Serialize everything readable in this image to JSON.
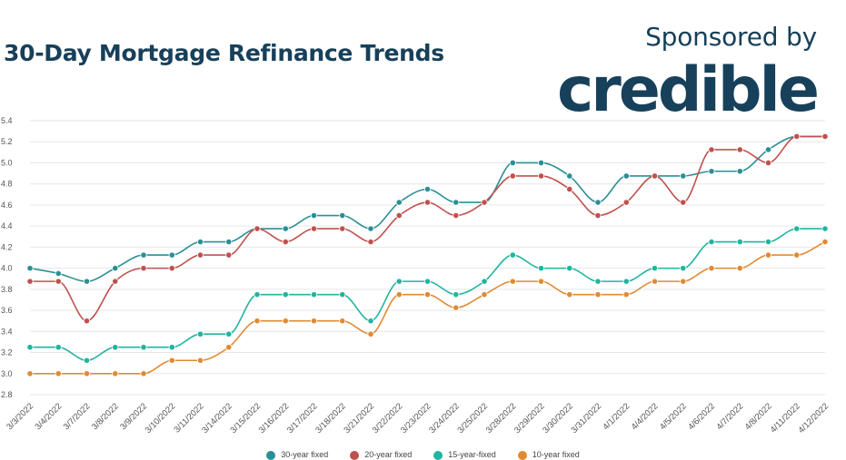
{
  "header": {
    "title": "30-Day Mortgage Refinance Trends",
    "sponsor_text": "Sponsored by",
    "sponsor_logo": "credible"
  },
  "colors": {
    "title": "#17405a",
    "grid": "#e6e6e6",
    "tick_text": "#555555"
  },
  "chart_data": {
    "type": "line",
    "categories": [
      "3/3/2022",
      "3/4/2022",
      "3/7/2022",
      "3/8/2022",
      "3/9/2022",
      "3/10/2022",
      "3/11/2022",
      "3/14/2022",
      "3/15/2022",
      "3/16/2022",
      "3/17/2022",
      "3/18/2022",
      "3/21/2022",
      "3/22/2022",
      "3/23/2022",
      "3/24/2022",
      "3/25/2022",
      "3/28/2022",
      "3/29/2022",
      "3/30/2022",
      "3/31/2022",
      "4/1/2022",
      "4/4/2022",
      "4/5/2022",
      "4/6/2022",
      "4/7/2022",
      "4/8/2022",
      "4/11/2022",
      "4/12/2022"
    ],
    "yticks": [
      "2.8",
      "3.0",
      "3.2",
      "3.4",
      "3.6",
      "3.8",
      "4.0",
      "4.2",
      "4.4",
      "4.6",
      "4.8",
      "5.0",
      "5.2",
      "5.4"
    ],
    "ylim": [
      2.8,
      5.4
    ],
    "grid": true,
    "legend_position": "bottom",
    "title": "",
    "xlabel": "",
    "ylabel": "",
    "series": [
      {
        "name": "30-year fixed",
        "color": "#2a8f96",
        "values": [
          4.0,
          3.95,
          3.875,
          4.0,
          4.125,
          4.125,
          4.25,
          4.25,
          4.375,
          4.375,
          4.5,
          4.5,
          4.375,
          4.625,
          4.75,
          4.625,
          4.625,
          5.0,
          5.0,
          4.875,
          4.625,
          4.875,
          4.875,
          4.875,
          4.92,
          4.92,
          5.125,
          5.25,
          5.25
        ]
      },
      {
        "name": "20-year fixed",
        "color": "#c0504d",
        "values": [
          3.875,
          3.875,
          3.5,
          3.875,
          4.0,
          4.0,
          4.125,
          4.125,
          4.375,
          4.25,
          4.375,
          4.375,
          4.25,
          4.5,
          4.625,
          4.5,
          4.625,
          4.875,
          4.875,
          4.75,
          4.5,
          4.625,
          4.875,
          4.625,
          5.125,
          5.125,
          5.0,
          5.25,
          5.25
        ]
      },
      {
        "name": "15-year-fixed",
        "color": "#1fb5a0",
        "values": [
          3.25,
          3.25,
          3.125,
          3.25,
          3.25,
          3.25,
          3.375,
          3.375,
          3.75,
          3.75,
          3.75,
          3.75,
          3.5,
          3.875,
          3.875,
          3.75,
          3.875,
          4.125,
          4.0,
          4.0,
          3.875,
          3.875,
          4.0,
          4.0,
          4.25,
          4.25,
          4.25,
          4.375,
          4.375
        ]
      },
      {
        "name": "10-year fixed",
        "color": "#e08a33",
        "values": [
          3.0,
          3.0,
          3.0,
          3.0,
          3.0,
          3.125,
          3.125,
          3.25,
          3.5,
          3.5,
          3.5,
          3.5,
          3.375,
          3.75,
          3.75,
          3.625,
          3.75,
          3.875,
          3.875,
          3.75,
          3.75,
          3.75,
          3.875,
          3.875,
          4.0,
          4.0,
          4.125,
          4.125,
          4.25
        ]
      }
    ]
  }
}
